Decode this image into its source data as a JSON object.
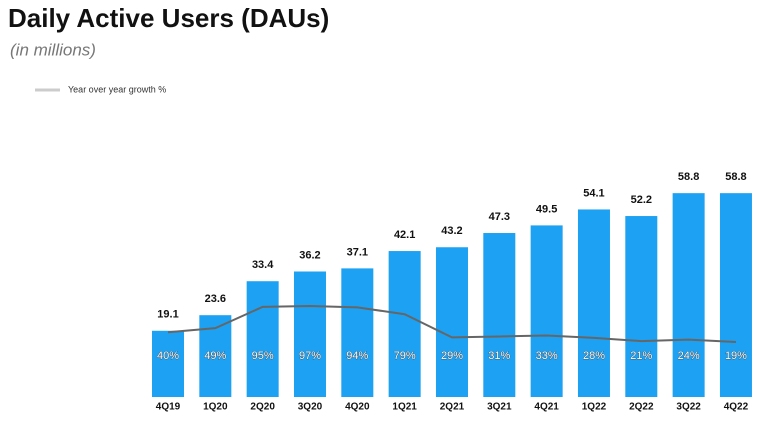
{
  "chart_data": {
    "type": "bar",
    "title": "Daily Active Users (DAUs)",
    "subtitle": "(in millions)",
    "categories": [
      "4Q19",
      "1Q20",
      "2Q20",
      "3Q20",
      "4Q20",
      "1Q21",
      "2Q21",
      "3Q21",
      "4Q21",
      "1Q22",
      "2Q22",
      "3Q22",
      "4Q22"
    ],
    "series": [
      {
        "color": "#1da1f2",
        "values": [
          19.1,
          23.6,
          33.4,
          36.2,
          37.1,
          42.1,
          43.2,
          47.3,
          49.5,
          54.1,
          52.2,
          58.8,
          58.8
        ]
      },
      {
        "name": "Year over year growth %",
        "type": "line",
        "axis": "y2",
        "color": "#666666",
        "values": [
          40,
          49,
          95,
          97,
          94,
          79,
          29,
          31,
          33,
          28,
          21,
          24,
          19
        ],
        "value_labels": [
          "40%",
          "49%",
          "95%",
          "97%",
          "94%",
          "79%",
          "29%",
          "31%",
          "33%",
          "28%",
          "21%",
          "24%",
          "19%"
        ]
      }
    ],
    "ylim": [
      0,
      60
    ],
    "y2lim": [
      -100,
      350
    ],
    "legend": "top-left"
  }
}
